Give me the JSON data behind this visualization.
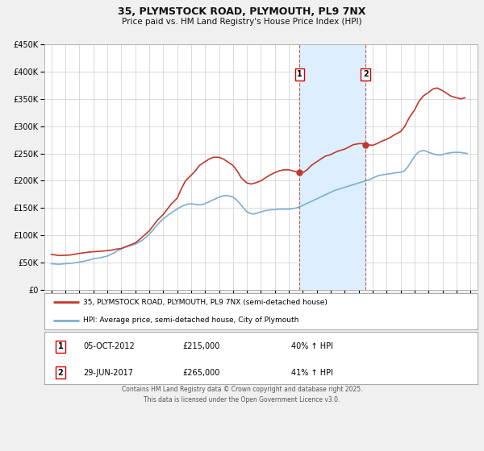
{
  "title": "35, PLYMSTOCK ROAD, PLYMOUTH, PL9 7NX",
  "subtitle": "Price paid vs. HM Land Registry's House Price Index (HPI)",
  "background_color": "#f0f0f0",
  "plot_background_color": "#ffffff",
  "grid_color": "#cccccc",
  "hpi_line_color": "#7bafd4",
  "price_line_color": "#c0392b",
  "shade_color": "#ddeeff",
  "ylim": [
    0,
    450000
  ],
  "yticks": [
    0,
    50000,
    100000,
    150000,
    200000,
    250000,
    300000,
    350000,
    400000,
    450000
  ],
  "xlim_start": 1994.5,
  "xlim_end": 2025.5,
  "xticks": [
    1995,
    1996,
    1997,
    1998,
    1999,
    2000,
    2001,
    2002,
    2003,
    2004,
    2005,
    2006,
    2007,
    2008,
    2009,
    2010,
    2011,
    2012,
    2013,
    2014,
    2015,
    2016,
    2017,
    2018,
    2019,
    2020,
    2021,
    2022,
    2023,
    2024,
    2025
  ],
  "event1_x": 2012.77,
  "event1_y_price": 215000,
  "event2_x": 2017.49,
  "event2_y_price": 265000,
  "legend_entries": [
    "35, PLYMSTOCK ROAD, PLYMOUTH, PL9 7NX (semi-detached house)",
    "HPI: Average price, semi-detached house, City of Plymouth"
  ],
  "table_entries": [
    {
      "num": "1",
      "date": "05-OCT-2012",
      "price": "£215,000",
      "change": "40% ↑ HPI"
    },
    {
      "num": "2",
      "date": "29-JUN-2017",
      "price": "£265,000",
      "change": "41% ↑ HPI"
    }
  ],
  "footer": "Contains HM Land Registry data © Crown copyright and database right 2025.\nThis data is licensed under the Open Government Licence v3.0.",
  "hpi_data_x": [
    1995.0,
    1995.25,
    1995.5,
    1995.75,
    1996.0,
    1996.25,
    1996.5,
    1996.75,
    1997.0,
    1997.25,
    1997.5,
    1997.75,
    1998.0,
    1998.25,
    1998.5,
    1998.75,
    1999.0,
    1999.25,
    1999.5,
    1999.75,
    2000.0,
    2000.25,
    2000.5,
    2000.75,
    2001.0,
    2001.25,
    2001.5,
    2001.75,
    2002.0,
    2002.25,
    2002.5,
    2002.75,
    2003.0,
    2003.25,
    2003.5,
    2003.75,
    2004.0,
    2004.25,
    2004.5,
    2004.75,
    2005.0,
    2005.25,
    2005.5,
    2005.75,
    2006.0,
    2006.25,
    2006.5,
    2006.75,
    2007.0,
    2007.25,
    2007.5,
    2007.75,
    2008.0,
    2008.25,
    2008.5,
    2008.75,
    2009.0,
    2009.25,
    2009.5,
    2009.75,
    2010.0,
    2010.25,
    2010.5,
    2010.75,
    2011.0,
    2011.25,
    2011.5,
    2011.75,
    2012.0,
    2012.25,
    2012.5,
    2012.75,
    2013.0,
    2013.25,
    2013.5,
    2013.75,
    2014.0,
    2014.25,
    2014.5,
    2014.75,
    2015.0,
    2015.25,
    2015.5,
    2015.75,
    2016.0,
    2016.25,
    2016.5,
    2016.75,
    2017.0,
    2017.25,
    2017.5,
    2017.75,
    2018.0,
    2018.25,
    2018.5,
    2018.75,
    2019.0,
    2019.25,
    2019.5,
    2019.75,
    2020.0,
    2020.25,
    2020.5,
    2020.75,
    2021.0,
    2021.25,
    2021.5,
    2021.75,
    2022.0,
    2022.25,
    2022.5,
    2022.75,
    2023.0,
    2023.25,
    2023.5,
    2023.75,
    2024.0,
    2024.25,
    2024.5,
    2024.75
  ],
  "hpi_data_y": [
    48000,
    47500,
    47000,
    47500,
    48000,
    48500,
    49000,
    50000,
    51000,
    52000,
    53500,
    55000,
    57000,
    58000,
    59000,
    60500,
    62000,
    65000,
    68000,
    72000,
    75000,
    78000,
    80000,
    82000,
    84000,
    87000,
    91000,
    96000,
    102000,
    109000,
    117000,
    124000,
    130000,
    135000,
    140000,
    144000,
    148000,
    152000,
    155000,
    157000,
    158000,
    157000,
    156000,
    156000,
    158000,
    161000,
    164000,
    167000,
    170000,
    172000,
    173000,
    172000,
    170000,
    165000,
    158000,
    150000,
    143000,
    140000,
    139000,
    141000,
    143000,
    145000,
    146000,
    147000,
    147000,
    148000,
    148000,
    148000,
    148000,
    149000,
    150000,
    152000,
    155000,
    158000,
    161000,
    164000,
    167000,
    170000,
    173000,
    176000,
    179000,
    182000,
    184000,
    186000,
    188000,
    190000,
    192000,
    194000,
    196000,
    198000,
    200000,
    202000,
    205000,
    208000,
    210000,
    211000,
    212000,
    213000,
    214000,
    215000,
    215000,
    218000,
    225000,
    235000,
    245000,
    252000,
    255000,
    255000,
    252000,
    250000,
    248000,
    247000,
    248000,
    250000,
    251000,
    252000,
    252000,
    252000,
    251000,
    250000
  ],
  "price_data_x": [
    1995.0,
    1995.3,
    1995.6,
    1996.0,
    1996.3,
    1996.6,
    1997.0,
    1997.3,
    1997.6,
    1998.0,
    1998.3,
    1998.6,
    1999.0,
    1999.3,
    1999.6,
    2000.0,
    2000.3,
    2000.6,
    2001.0,
    2001.3,
    2001.6,
    2002.0,
    2002.3,
    2002.6,
    2003.0,
    2003.3,
    2003.6,
    2004.0,
    2004.3,
    2004.6,
    2005.0,
    2005.3,
    2005.6,
    2006.0,
    2006.3,
    2006.6,
    2007.0,
    2007.3,
    2007.6,
    2008.0,
    2008.3,
    2008.6,
    2009.0,
    2009.3,
    2009.6,
    2010.0,
    2010.3,
    2010.6,
    2011.0,
    2011.3,
    2011.6,
    2012.0,
    2012.3,
    2012.6,
    2013.0,
    2013.3,
    2013.6,
    2014.0,
    2014.3,
    2014.6,
    2015.0,
    2015.3,
    2015.6,
    2016.0,
    2016.3,
    2016.6,
    2017.0,
    2017.3,
    2017.6,
    2018.0,
    2018.3,
    2018.6,
    2019.0,
    2019.3,
    2019.6,
    2020.0,
    2020.3,
    2020.6,
    2021.0,
    2021.3,
    2021.6,
    2022.0,
    2022.3,
    2022.6,
    2023.0,
    2023.3,
    2023.6,
    2024.0,
    2024.3,
    2024.6
  ],
  "price_data_y": [
    65000,
    64000,
    63000,
    63500,
    64000,
    65000,
    67000,
    68000,
    69000,
    70000,
    70500,
    71000,
    72000,
    73000,
    74500,
    76000,
    79000,
    82000,
    86000,
    92000,
    99000,
    108000,
    118000,
    128000,
    138000,
    148000,
    158000,
    168000,
    185000,
    200000,
    210000,
    218000,
    228000,
    235000,
    240000,
    243000,
    243000,
    240000,
    235000,
    228000,
    218000,
    205000,
    196000,
    194000,
    196000,
    200000,
    205000,
    210000,
    215000,
    218000,
    220000,
    220000,
    218000,
    216000,
    215000,
    220000,
    228000,
    235000,
    240000,
    245000,
    248000,
    252000,
    255000,
    258000,
    262000,
    266000,
    268000,
    268000,
    266000,
    265000,
    268000,
    272000,
    276000,
    280000,
    285000,
    290000,
    300000,
    315000,
    330000,
    345000,
    355000,
    362000,
    368000,
    370000,
    365000,
    360000,
    355000,
    352000,
    350000,
    352000
  ]
}
